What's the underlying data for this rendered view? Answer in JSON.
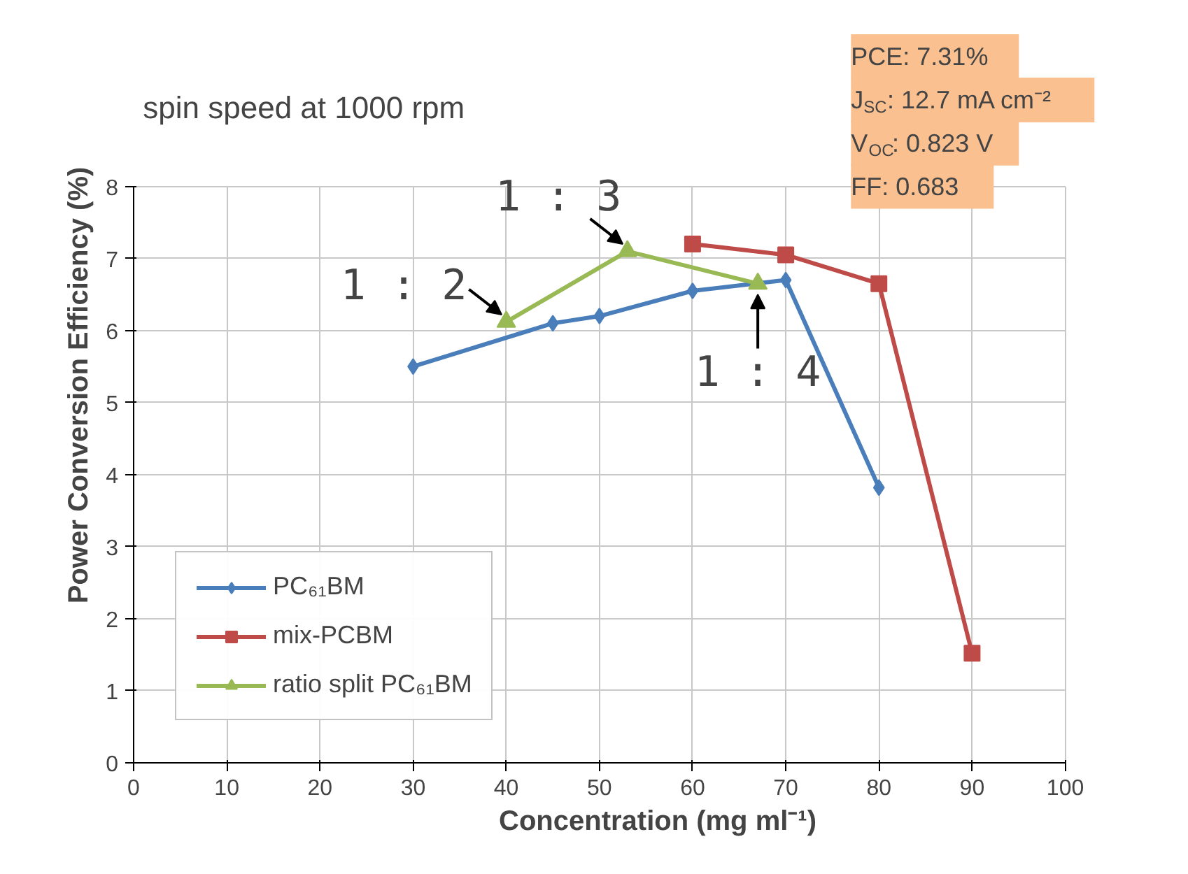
{
  "chart_data": {
    "type": "line",
    "title": "spin speed at 1000 rpm",
    "xlabel": "Concentration (mg ml⁻¹)",
    "ylabel": "Power Conversion Efficiency (%)",
    "xlim": [
      0,
      100
    ],
    "xticks": [
      0,
      10,
      20,
      30,
      40,
      50,
      60,
      70,
      80,
      90,
      100
    ],
    "ylim": [
      0,
      8
    ],
    "yticks": [
      0,
      1,
      2,
      3,
      4,
      5,
      6,
      7,
      8
    ],
    "grid": true,
    "legend": "bottom left",
    "series": [
      {
        "name": "PC₆₁BM",
        "color": "#4a7ebb",
        "marker": "diamond",
        "x": [
          30,
          45,
          50,
          60,
          70,
          80
        ],
        "values": [
          5.5,
          6.1,
          6.2,
          6.55,
          6.7,
          3.82
        ]
      },
      {
        "name": "mix-PCBM",
        "color": "#be4b48",
        "marker": "square",
        "x": [
          60,
          70,
          80,
          90
        ],
        "values": [
          7.2,
          7.05,
          6.65,
          1.52
        ]
      },
      {
        "name": "ratio split PC₆₁BM",
        "color": "#98b954",
        "marker": "triangle",
        "x": [
          40,
          53,
          67
        ],
        "values": [
          6.12,
          7.1,
          6.65
        ]
      }
    ],
    "annotations": [
      {
        "text": "1 : 2",
        "x": 40,
        "y": 6.12
      },
      {
        "text": "1 : 3",
        "x": 53,
        "y": 7.1
      },
      {
        "text": "1 : 4",
        "x": 67,
        "y": 6.65
      },
      "PCE: 7.31%",
      "J$_{SC}$: 12.7 mA cm⁻²",
      "V$_{OC}$: 0.823 V",
      "FF: 0.683"
    ]
  }
}
